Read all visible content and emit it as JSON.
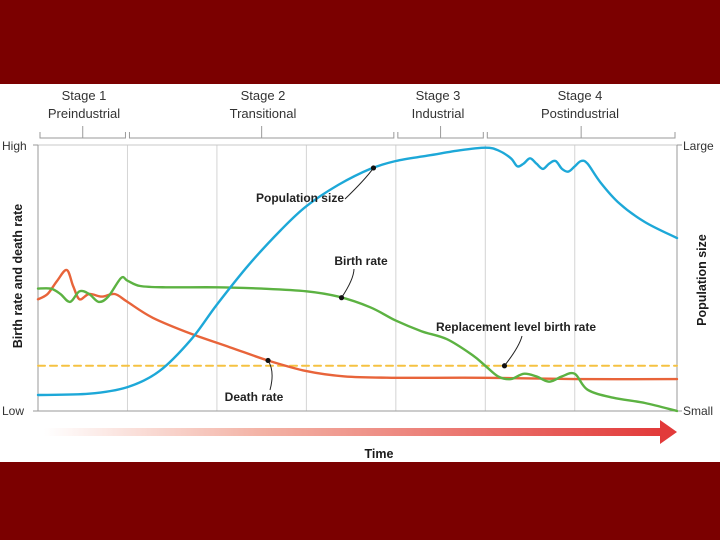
{
  "colors": {
    "slide_background": "#7b0000",
    "panel_background": "#ffffff",
    "population_size": "#1da8d8",
    "birth_rate": "#5cb242",
    "death_rate": "#e8643a",
    "replacement_level": "#f5c242",
    "time_arrow": "#e23a3a"
  },
  "chart_data": {
    "type": "line",
    "stages": [
      {
        "number": "Stage 1",
        "name": "Preindustrial",
        "x_range": [
          0.0,
          0.14
        ]
      },
      {
        "number": "Stage 2",
        "name": "Transitional",
        "x_range": [
          0.14,
          0.56
        ]
      },
      {
        "number": "Stage 3",
        "name": "Industrial",
        "x_range": [
          0.56,
          0.7
        ]
      },
      {
        "number": "Stage 4",
        "name": "Postindustrial",
        "x_range": [
          0.7,
          1.0
        ]
      }
    ],
    "left_axis": {
      "title": "Birth rate and death rate",
      "top": "High",
      "bottom": "Low"
    },
    "right_axis": {
      "title": "Population size",
      "top": "Large",
      "bottom": "Small"
    },
    "xlabel": "Time",
    "xlim": [
      0,
      1
    ],
    "ylim": [
      0,
      1
    ],
    "vertical_grid_x": [
      0.14,
      0.28,
      0.42,
      0.56,
      0.7,
      0.84
    ],
    "series": [
      {
        "name": "Population size",
        "color_key": "population_size",
        "points": [
          [
            0,
            0.06
          ],
          [
            0.08,
            0.065
          ],
          [
            0.14,
            0.09
          ],
          [
            0.19,
            0.15
          ],
          [
            0.24,
            0.27
          ],
          [
            0.28,
            0.4
          ],
          [
            0.33,
            0.55
          ],
          [
            0.38,
            0.68
          ],
          [
            0.42,
            0.77
          ],
          [
            0.47,
            0.85
          ],
          [
            0.52,
            0.91
          ],
          [
            0.56,
            0.94
          ],
          [
            0.61,
            0.96
          ],
          [
            0.66,
            0.98
          ],
          [
            0.7,
            0.99
          ],
          [
            0.72,
            0.98
          ],
          [
            0.74,
            0.95
          ],
          [
            0.75,
            0.92
          ],
          [
            0.76,
            0.93
          ],
          [
            0.77,
            0.95
          ],
          [
            0.78,
            0.93
          ],
          [
            0.79,
            0.91
          ],
          [
            0.8,
            0.93
          ],
          [
            0.81,
            0.94
          ],
          [
            0.82,
            0.91
          ],
          [
            0.83,
            0.9
          ],
          [
            0.84,
            0.92
          ],
          [
            0.85,
            0.94
          ],
          [
            0.86,
            0.93
          ],
          [
            0.88,
            0.86
          ],
          [
            0.91,
            0.78
          ],
          [
            0.95,
            0.71
          ],
          [
            1.0,
            0.65
          ]
        ]
      },
      {
        "name": "Birth rate",
        "color_key": "birth_rate",
        "points": [
          [
            0,
            0.46
          ],
          [
            0.02,
            0.46
          ],
          [
            0.035,
            0.44
          ],
          [
            0.05,
            0.41
          ],
          [
            0.065,
            0.45
          ],
          [
            0.08,
            0.44
          ],
          [
            0.095,
            0.41
          ],
          [
            0.11,
            0.43
          ],
          [
            0.13,
            0.5
          ],
          [
            0.14,
            0.49
          ],
          [
            0.16,
            0.47
          ],
          [
            0.2,
            0.465
          ],
          [
            0.28,
            0.465
          ],
          [
            0.35,
            0.46
          ],
          [
            0.42,
            0.45
          ],
          [
            0.47,
            0.43
          ],
          [
            0.52,
            0.39
          ],
          [
            0.56,
            0.34
          ],
          [
            0.6,
            0.3
          ],
          [
            0.64,
            0.27
          ],
          [
            0.68,
            0.21
          ],
          [
            0.7,
            0.17
          ],
          [
            0.72,
            0.13
          ],
          [
            0.74,
            0.12
          ],
          [
            0.76,
            0.14
          ],
          [
            0.78,
            0.13
          ],
          [
            0.8,
            0.11
          ],
          [
            0.82,
            0.13
          ],
          [
            0.84,
            0.14
          ],
          [
            0.86,
            0.08
          ],
          [
            0.9,
            0.05
          ],
          [
            0.95,
            0.03
          ],
          [
            1.0,
            0.0
          ]
        ]
      },
      {
        "name": "Death rate",
        "color_key": "death_rate",
        "points": [
          [
            0,
            0.42
          ],
          [
            0.015,
            0.44
          ],
          [
            0.03,
            0.49
          ],
          [
            0.045,
            0.53
          ],
          [
            0.055,
            0.47
          ],
          [
            0.065,
            0.42
          ],
          [
            0.08,
            0.44
          ],
          [
            0.1,
            0.43
          ],
          [
            0.12,
            0.44
          ],
          [
            0.14,
            0.41
          ],
          [
            0.18,
            0.35
          ],
          [
            0.24,
            0.29
          ],
          [
            0.3,
            0.24
          ],
          [
            0.36,
            0.19
          ],
          [
            0.42,
            0.15
          ],
          [
            0.48,
            0.13
          ],
          [
            0.56,
            0.125
          ],
          [
            0.7,
            0.125
          ],
          [
            0.84,
            0.12
          ],
          [
            1.0,
            0.12
          ]
        ]
      },
      {
        "name": "Replacement level birth rate",
        "color_key": "replacement_level",
        "dashed": true,
        "points": [
          [
            0,
            0.17
          ],
          [
            1.0,
            0.17
          ]
        ]
      }
    ],
    "annotations": [
      {
        "text": "Population size",
        "series": "Population size",
        "at_x": 0.525
      },
      {
        "text": "Birth rate",
        "series": "Birth rate",
        "at_x": 0.475
      },
      {
        "text": "Death rate",
        "series": "Death rate",
        "at_x": 0.36
      },
      {
        "text": "Replacement level birth rate",
        "series": "Replacement level birth rate",
        "at_x": 0.73
      }
    ]
  }
}
